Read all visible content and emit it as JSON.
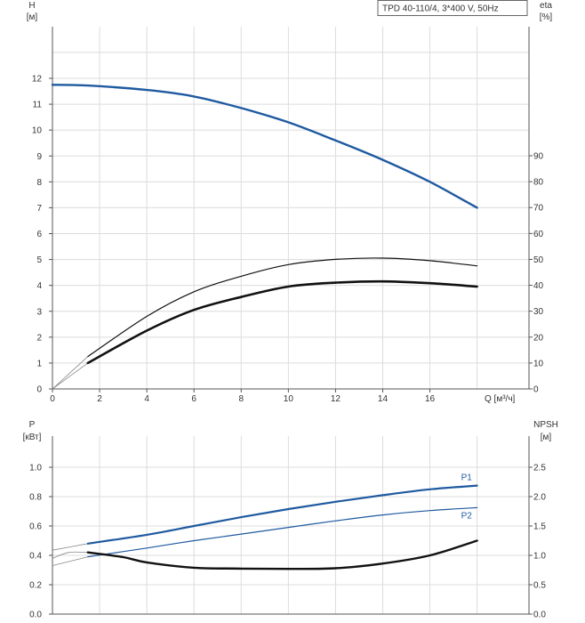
{
  "chart_data": [
    {
      "type": "line",
      "title": "TPD 40-110/4, 3*400 V, 50Hz",
      "left_axis_label": [
        "H",
        "[м]"
      ],
      "right_axis_label": [
        "eta",
        "[%]"
      ],
      "xlabel": "Q [м³/ч]",
      "x_ticks": [
        "0",
        "2",
        "4",
        "6",
        "8",
        "10",
        "12",
        "14",
        "16"
      ],
      "xlim": [
        0,
        18
      ],
      "left_ticks": [
        "0",
        "1",
        "2",
        "3",
        "4",
        "5",
        "6",
        "7",
        "8",
        "9",
        "10",
        "11",
        "12"
      ],
      "ylim_left": [
        0,
        12
      ],
      "right_ticks": [
        "0",
        "10",
        "20",
        "30",
        "40",
        "50",
        "60",
        "70",
        "80",
        "90"
      ],
      "ylim_right": [
        0,
        90
      ],
      "grid": true,
      "series": [
        {
          "axis": "left",
          "color": "#1f5aa0",
          "width": 2.4,
          "x": [
            0,
            1.5,
            4,
            6,
            8,
            10,
            12,
            14,
            16,
            18
          ],
          "y": [
            11.75,
            11.72,
            11.55,
            11.3,
            10.85,
            10.3,
            9.6,
            8.85,
            8.0,
            7.0
          ],
          "ext_x": [
            0,
            1.5
          ],
          "ext_y": [
            11.75,
            11.72
          ]
        },
        {
          "axis": "right",
          "color": "#111111",
          "width": 1.2,
          "x": [
            1.5,
            4,
            6,
            8,
            10,
            12,
            14,
            16,
            18
          ],
          "y": [
            12.5,
            28,
            37.5,
            43.5,
            48,
            50,
            50.5,
            49.5,
            47.5
          ],
          "ext_x": [
            0,
            1.5
          ],
          "ext_y": [
            0,
            12.5
          ]
        },
        {
          "axis": "right",
          "color": "#111111",
          "width": 2.6,
          "x": [
            1.5,
            4,
            6,
            8,
            10,
            12,
            14,
            16,
            18
          ],
          "y": [
            10,
            22.5,
            30.5,
            35.5,
            39.5,
            41,
            41.5,
            40.8,
            39.5
          ],
          "ext_x": [
            0,
            1.5
          ],
          "ext_y": [
            0,
            10
          ]
        }
      ]
    },
    {
      "type": "line",
      "left_axis_label": [
        "P",
        "[кВт]"
      ],
      "right_axis_label": [
        "NPSH",
        "[м]"
      ],
      "left_ticks": [
        "0.0",
        "0.2",
        "0.4",
        "0.6",
        "0.8",
        "1.0"
      ],
      "ylim_left": [
        0,
        1.2
      ],
      "right_ticks": [
        "0.0",
        "0.5",
        "1.0",
        "1.5",
        "2.0",
        "2.5"
      ],
      "ylim_right": [
        0,
        3.0
      ],
      "xlim": [
        0,
        18
      ],
      "grid": true,
      "series": [
        {
          "name": "P1",
          "axis": "left",
          "color": "#1f5aa0",
          "width": 2.2,
          "x": [
            1.5,
            4,
            6,
            8,
            10,
            12,
            14,
            16,
            18
          ],
          "y": [
            0.48,
            0.54,
            0.6,
            0.66,
            0.715,
            0.765,
            0.81,
            0.85,
            0.875
          ],
          "ext_x": [
            0,
            1.5
          ],
          "ext_y": [
            0.435,
            0.48
          ]
        },
        {
          "name": "P2",
          "axis": "left",
          "color": "#1f5aa0",
          "width": 1.2,
          "x": [
            1.5,
            4,
            6,
            8,
            10,
            12,
            14,
            16,
            18
          ],
          "y": [
            0.39,
            0.45,
            0.5,
            0.545,
            0.59,
            0.635,
            0.675,
            0.705,
            0.725
          ],
          "ext_x": [
            0,
            1.5
          ],
          "ext_y": [
            0.33,
            0.39
          ]
        },
        {
          "axis": "right",
          "color": "#111111",
          "width": 2.4,
          "x": [
            1.5,
            3,
            4,
            6,
            8,
            10,
            12,
            14,
            16,
            18
          ],
          "y": [
            1.05,
            0.97,
            0.88,
            0.79,
            0.775,
            0.77,
            0.78,
            0.86,
            1.0,
            1.25
          ],
          "ext_x": [
            0,
            0.7,
            1.5
          ],
          "ext_y": [
            0.95,
            1.05,
            1.05
          ]
        }
      ]
    }
  ]
}
